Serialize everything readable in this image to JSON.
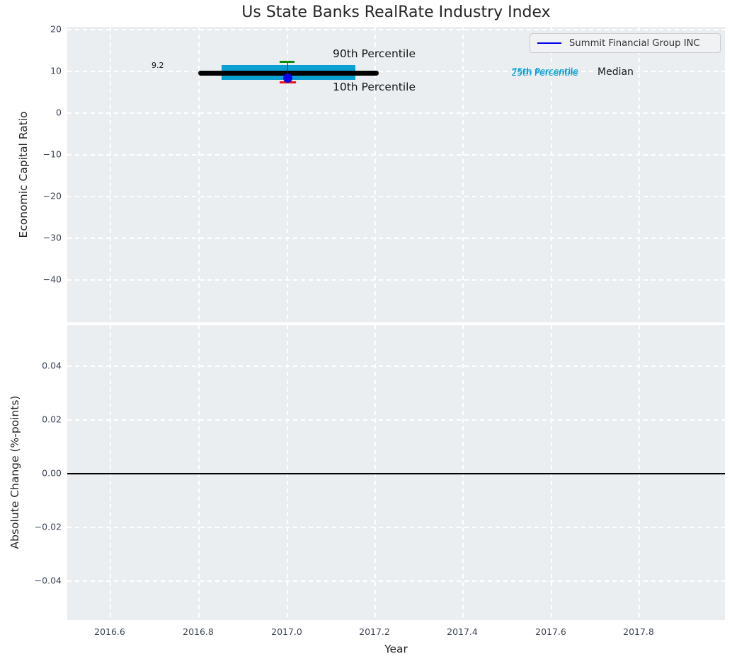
{
  "title": "Us State Banks RealRate Industry Index",
  "legend": {
    "label": "Summit Financial Group INC",
    "line_color": "#0000ee"
  },
  "colors": {
    "plot_bg": "#eaeef0",
    "grid": "#ffffff",
    "median_line": "#000000",
    "iqr_band": "#0aa0d2",
    "p90_cap": "#0c8b0c",
    "p10_cap": "#ee1111",
    "value_dot": "#0000ee",
    "tick_text": "#3c4454",
    "annotation_cyan": "#0aa0d2"
  },
  "top_plot": {
    "ylabel": "Economic Capital Ratio",
    "ytick_labels": [
      "20",
      "10",
      "0",
      "−10",
      "−20",
      "−30",
      "−40"
    ],
    "annotations": {
      "median_value": "9.2",
      "p90": "90th Percentile",
      "p10": "10th Percentile",
      "p75": "75th Percentile",
      "p25": "25th Percentile",
      "median": "Median"
    }
  },
  "bottom_plot": {
    "ylabel": "Absolute Change (%-points)",
    "ytick_labels": [
      "0.04",
      "0.02",
      "0.00",
      "−0.02",
      "−0.04"
    ]
  },
  "x_axis": {
    "label": "Year",
    "tick_labels": [
      "2016.6",
      "2016.8",
      "2017.0",
      "2017.2",
      "2017.4",
      "2017.6",
      "2017.8"
    ]
  },
  "chart_data": [
    {
      "type": "errorbar",
      "title": "Us State Banks RealRate Industry Index",
      "xlabel": "Year",
      "ylabel": "Economic Capital Ratio",
      "xlim": [
        2016.5,
        2018.0
      ],
      "ylim": [
        -50.5,
        20.4
      ],
      "xticks": [
        2016.6,
        2016.8,
        2017.0,
        2017.2,
        2017.4,
        2017.6,
        2017.8
      ],
      "yticks": [
        20,
        10,
        0,
        -10,
        -20,
        -30,
        -40
      ],
      "grid": true,
      "legend_position": "upper right",
      "series": [
        {
          "name": "Summit Financial Group INC",
          "x": [
            2017.0
          ],
          "values": [
            8.3
          ],
          "marker": "circle",
          "color": "#0000ee"
        }
      ],
      "industry_stats": {
        "x": 2017.0,
        "median": 9.2,
        "median_span_years": [
          2016.8,
          2017.2
        ],
        "p25": 7.9,
        "p75": 11.3,
        "iqr_span_years": [
          2016.85,
          2017.15
        ],
        "p10": 7.3,
        "p90": 12.2
      },
      "annotations": [
        {
          "text": "9.2",
          "x": 2016.7,
          "y": 11.3
        },
        {
          "text": "90th Percentile",
          "x": 2017.11,
          "y": 14.0
        },
        {
          "text": "10th Percentile",
          "x": 2017.11,
          "y": 6.3
        },
        {
          "text": "75th Percentile",
          "x": 2017.51,
          "y": 9.7
        },
        {
          "text": "25th Percentile",
          "x": 2017.51,
          "y": 9.4
        },
        {
          "text": "Median",
          "x": 2017.71,
          "y": 9.6
        }
      ]
    },
    {
      "type": "line",
      "xlabel": "Year",
      "ylabel": "Absolute Change (%-points)",
      "xlim": [
        2016.5,
        2018.0
      ],
      "ylim": [
        -0.055,
        0.056
      ],
      "xticks": [
        2016.6,
        2016.8,
        2017.0,
        2017.2,
        2017.4,
        2017.6,
        2017.8
      ],
      "yticks": [
        0.04,
        0.02,
        0.0,
        -0.02,
        -0.04
      ],
      "grid": true,
      "zero_line_y": 0.0,
      "series": []
    }
  ]
}
